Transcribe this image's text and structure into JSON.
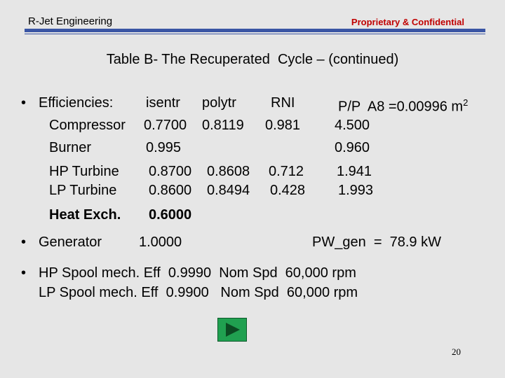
{
  "header": {
    "left": "R-Jet Engineering",
    "right": "Proprietary & Confidential"
  },
  "title": "Table B- The Recuperated  Cycle – (continued)",
  "bullet": "•",
  "efficiencies": {
    "label": "Efficiencies:",
    "columns": [
      "isentr",
      "polytr",
      "RNI"
    ],
    "pp_header": "P/P  A8 =0.00996 m",
    "pp_exponent": "2",
    "rows": [
      {
        "name": "Compressor",
        "values": [
          "0.7700",
          "0.8119",
          "0.981"
        ],
        "pp": "4.500"
      },
      {
        "name": "Burner",
        "values": [
          "0.995"
        ],
        "pp": "0.960"
      },
      {
        "name": "HP Turbine",
        "values": [
          "0.8700",
          "0.8608",
          "0.712"
        ],
        "pp": "1.941"
      },
      {
        "name": "LP Turbine",
        "values": [
          "0.8600",
          "0.8494",
          "0.428"
        ],
        "pp": "1.993"
      },
      {
        "name": "Heat Exch.",
        "values": [
          "0.6000"
        ]
      }
    ]
  },
  "generator": {
    "label": "Generator",
    "value": "1.0000",
    "power": "PW_gen  =  78.9 kW"
  },
  "spools": [
    "HP Spool mech. Eff  0.9990  Nom Spd  60,000 rpm",
    "LP Spool mech. Eff  0.9900   Nom Spd  60,000 rpm"
  ],
  "page_number": "20"
}
